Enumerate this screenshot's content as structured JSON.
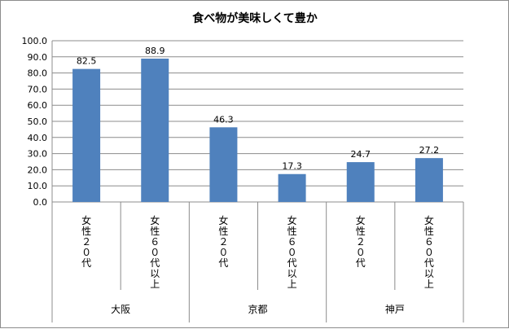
{
  "chart_data": {
    "type": "bar",
    "title": "食べ物が美味しくて豊か",
    "xlabel": "",
    "ylabel": "",
    "ylim": [
      0,
      100
    ],
    "yticks": [
      "0.0",
      "10.0",
      "20.0",
      "30.0",
      "40.0",
      "50.0",
      "60.0",
      "70.0",
      "80.0",
      "90.0",
      "100.0"
    ],
    "grid": true,
    "legend": "none",
    "bar_color": "#4f81bd",
    "groups": [
      {
        "name": "大阪",
        "categories": [
          "女性２０代",
          "女性６０代以上"
        ]
      },
      {
        "name": "京都",
        "categories": [
          "女性２０代",
          "女性６０代以上"
        ]
      },
      {
        "name": "神戸",
        "categories": [
          "女性２０代",
          "女性６０代以上"
        ]
      }
    ],
    "values": [
      82.5,
      88.9,
      46.3,
      17.3,
      24.7,
      27.2
    ],
    "value_labels": [
      "82.5",
      "88.9",
      "46.3",
      "17.3",
      "24.7",
      "27.2"
    ]
  }
}
